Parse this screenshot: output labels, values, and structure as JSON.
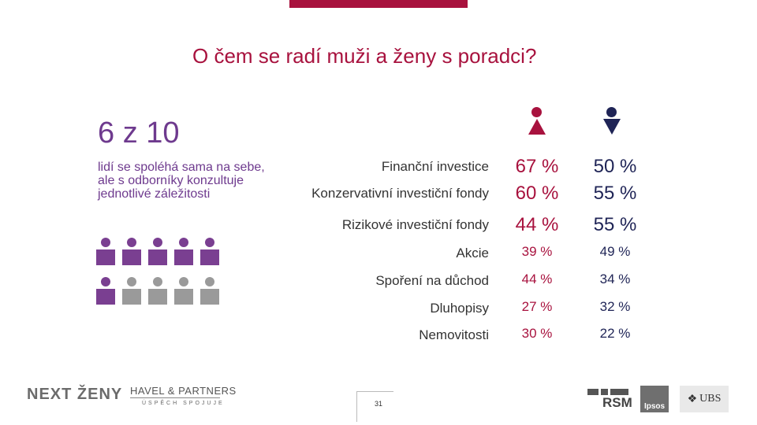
{
  "slide": {
    "title": "O čem se radí muži a ženy s poradci?",
    "page_number": "31"
  },
  "stat": {
    "headline": "6 z 10",
    "description": "lidí se spoléhá sama na sebe, ale s odborníky konzultuje jednotlivé záležitosti",
    "people_total": 10,
    "people_highlighted": 6
  },
  "colors": {
    "accent_red": "#a8123e",
    "accent_navy": "#1f2456",
    "accent_purple": "#7a3f91",
    "gray": "#9a9a9a"
  },
  "columns": [
    {
      "gender": "ženy",
      "icon": "woman-icon"
    },
    {
      "gender": "muži",
      "icon": "man-icon"
    }
  ],
  "rows": [
    {
      "label": "Finanční investice",
      "women": "67 %",
      "men": "50 %",
      "emphasis": true
    },
    {
      "label": "Konzervativní investiční fondy",
      "women": "60 %",
      "men": "55 %",
      "emphasis": true
    },
    {
      "label": "Rizikové investiční fondy",
      "women": "44 %",
      "men": "55 %",
      "emphasis": true
    },
    {
      "label": "Akcie",
      "women": "39 %",
      "men": "49 %",
      "emphasis": false
    },
    {
      "label": "Spoření na důchod",
      "women": "44 %",
      "men": "34 %",
      "emphasis": false
    },
    {
      "label": "Dluhopisy",
      "women": "27 %",
      "men": "32 %",
      "emphasis": false
    },
    {
      "label": "Nemovitosti",
      "women": "30 %",
      "men": "22 %",
      "emphasis": false
    }
  ],
  "footer": {
    "logo_nextzeny": "NEXT ŽENY",
    "logo_havel": "HAVEL & PARTNERS",
    "logo_havel_sub": "ÚSPĚCH SPOJUJE",
    "logo_rsm": "RSM",
    "logo_ipsos": "Ipsos",
    "logo_ubs": "UBS"
  }
}
